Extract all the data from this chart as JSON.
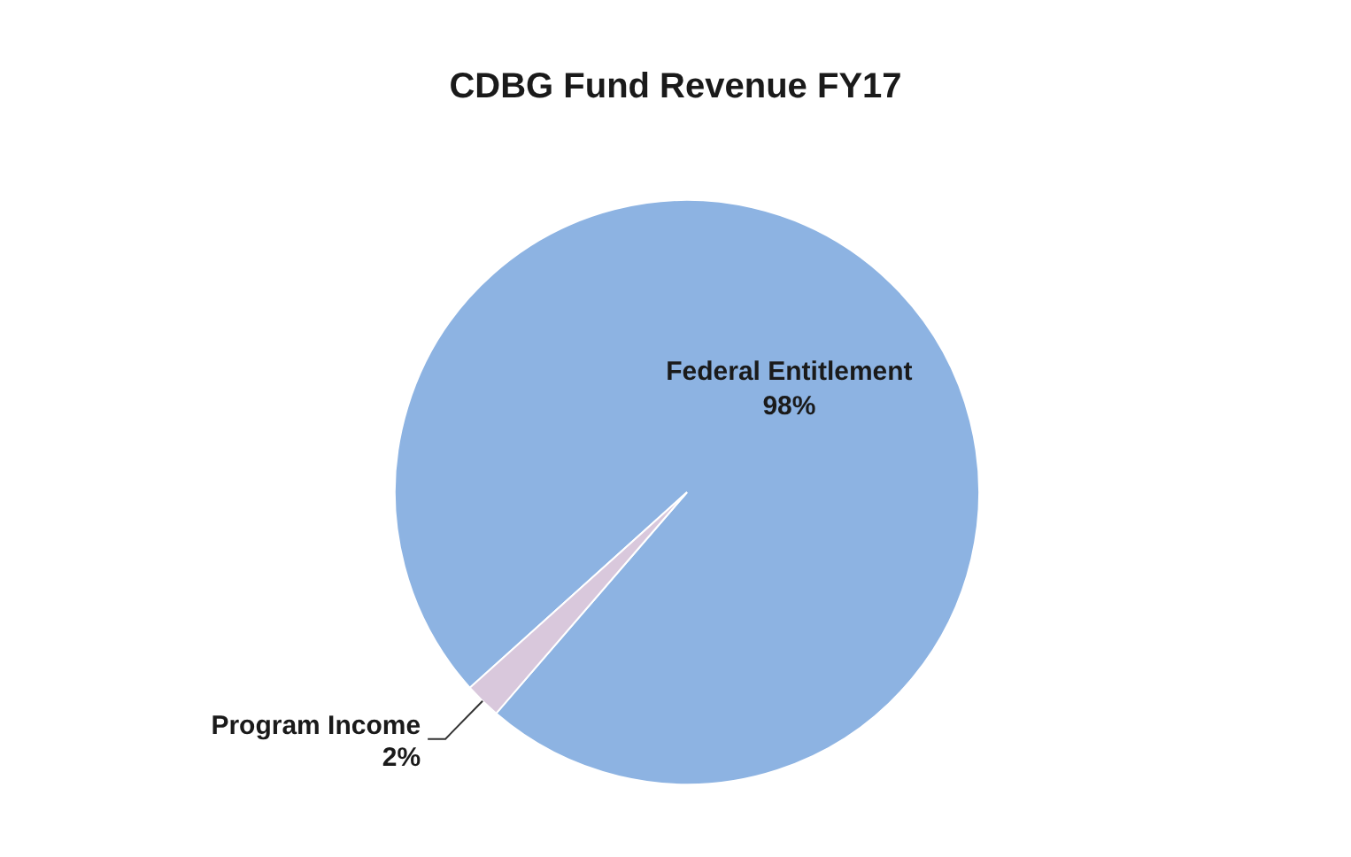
{
  "chart_data": {
    "type": "pie",
    "title": "CDBG Fund Revenue FY17",
    "categories": [
      "Federal Entitlement",
      "Program Income"
    ],
    "values": [
      98,
      2
    ],
    "colors": [
      "#8db3e2",
      "#d9c8dc"
    ],
    "value_labels": [
      "98%",
      "2%"
    ]
  }
}
